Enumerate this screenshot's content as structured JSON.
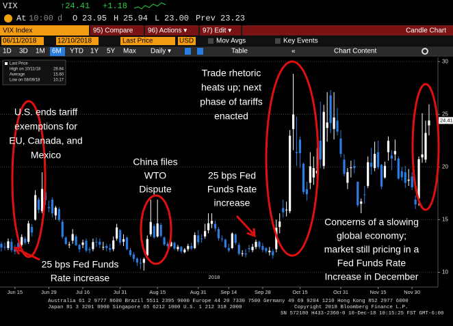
{
  "header": {
    "ticker": "VIX",
    "last": "↑24.41",
    "change": "+1.18",
    "time_label": "At",
    "time": "10:00",
    "time_flag": "d",
    "open_label": "O",
    "open": "23.95",
    "high_label": "H",
    "high": "25.94",
    "low_label": "L",
    "low": "23.00",
    "prev_label": "Prev",
    "prev": "23.23"
  },
  "toolbar": {
    "security": "VIX Index",
    "compare": "95) Compare",
    "actions": "96) Actions ▾",
    "edit": "97) Edit ▾",
    "chart_name": "Candle Chart"
  },
  "date_row": {
    "start": "06/11/2018",
    "end": "12/10/2018",
    "field": "Last Price",
    "currency": "USD",
    "mov_avgs": "Mov Avgs",
    "key_events": "Key Events"
  },
  "ranges": [
    "1D",
    "3D",
    "1M",
    "6M",
    "YTD",
    "1Y",
    "5Y",
    "Max"
  ],
  "period": "Daily ▾",
  "table": "Table",
  "chart_content": "Chart Content",
  "chart_data": {
    "type": "candlestick",
    "up_color": "#ffffff",
    "down_color": "#2a7de1",
    "year_label": "2018",
    "legend": [
      {
        "label": "Last Price"
      },
      {
        "label": "High on 10/11/18",
        "value": "28.84"
      },
      {
        "label": "Average",
        "value": "15.60"
      },
      {
        "label": "Low on 08/09/18",
        "value": "10.17"
      }
    ],
    "categories": [
      null,
      null,
      null,
      null,
      "Jun 15",
      null,
      null,
      null,
      null,
      null,
      null,
      null,
      null,
      null,
      "Jun 29",
      null,
      null,
      null,
      null,
      null,
      null,
      null,
      null,
      null,
      "Jul 16",
      null,
      null,
      null,
      null,
      null,
      null,
      null,
      null,
      null,
      null,
      "Jul 31",
      null,
      null,
      null,
      null,
      null,
      null,
      null,
      null,
      null,
      null,
      "Aug 15",
      null,
      null,
      null,
      null,
      null,
      null,
      null,
      null,
      null,
      null,
      null,
      "Aug 31",
      null,
      null,
      null,
      null,
      null,
      null,
      null,
      null,
      "Sep 14",
      null,
      null,
      null,
      null,
      null,
      null,
      null,
      null,
      null,
      "Sep 28",
      null,
      null,
      null,
      null,
      null,
      null,
      null,
      null,
      null,
      null,
      "Oct 15",
      null,
      null,
      null,
      null,
      null,
      null,
      null,
      null,
      null,
      null,
      null,
      "Oct 31",
      null,
      null,
      null,
      null,
      null,
      null,
      null,
      null,
      null,
      null,
      "Nov 15",
      null,
      null,
      null,
      null,
      null,
      null,
      null,
      null,
      null,
      "Nov 30",
      null,
      null,
      null,
      null,
      null
    ],
    "open": [
      12.7,
      12.4,
      12.3,
      12.9,
      12.2,
      12.8,
      12.6,
      13.2,
      12.9,
      14.3,
      15.0,
      16.9,
      15.8,
      17.6,
      16.2,
      16.9,
      15.4,
      16.0,
      14.8,
      13.3,
      12.6,
      13.0,
      13.4,
      12.6,
      12.6,
      13.0,
      12.2,
      12.2,
      12.9,
      12.9,
      12.4,
      12.5,
      12.3,
      12.2,
      13.2,
      14.0,
      12.9,
      13.3,
      12.1,
      11.7,
      11.3,
      10.9,
      10.9,
      11.6,
      13.6,
      14.4,
      13.4,
      14.5,
      13.3,
      12.7,
      12.5,
      12.8,
      12.2,
      12.4,
      11.9,
      12.2,
      12.5,
      12.3,
      13.5,
      13.2,
      13.4,
      14.0,
      14.6,
      14.6,
      14.1,
      13.2,
      13.1,
      12.3,
      12.3,
      13.6,
      12.6,
      11.8,
      11.8,
      12.3,
      12.1,
      12.4,
      12.9,
      12.5,
      12.3,
      11.9,
      12.0,
      12.2,
      14.3,
      16.1,
      15.9,
      15.8,
      23.6,
      21.4,
      22.6,
      20.3,
      17.9,
      18.5,
      19.0,
      19.4,
      22.5,
      20.1,
      23.7,
      26.8,
      23.6,
      24.4,
      22.7,
      20.7,
      18.5,
      19.9,
      20.1,
      18.6,
      16.5,
      17.4,
      18.2,
      20.4,
      19.9,
      21.4,
      20.2,
      19.0,
      21.4,
      21.1,
      21.2,
      20.8,
      19.6,
      19.5,
      18.7,
      19.1,
      16.9,
      17.0,
      20.9,
      20.7,
      23.95
    ],
    "high": [
      12.9,
      12.8,
      13.2,
      13.2,
      12.6,
      13.2,
      13.6,
      13.4,
      14.9,
      14.6,
      17.8,
      17.1,
      19.5,
      18.7,
      16.8,
      17.1,
      16.3,
      16.2,
      15.0,
      13.4,
      12.9,
      14.1,
      13.6,
      12.7,
      13.1,
      13.2,
      12.4,
      13.2,
      13.3,
      13.2,
      12.9,
      12.7,
      12.7,
      13.4,
      14.6,
      14.1,
      13.6,
      13.4,
      12.3,
      11.9,
      11.4,
      11.3,
      11.4,
      13.5,
      16.9,
      14.6,
      16.9,
      14.7,
      13.4,
      12.9,
      13.1,
      12.9,
      12.6,
      12.5,
      12.3,
      12.7,
      12.8,
      13.8,
      14.0,
      13.6,
      14.6,
      15.6,
      15.6,
      14.9,
      14.3,
      13.5,
      13.2,
      12.7,
      13.8,
      13.7,
      12.8,
      12.1,
      12.2,
      12.6,
      12.7,
      13.1,
      13.0,
      12.8,
      12.4,
      12.4,
      12.2,
      15.0,
      15.6,
      16.9,
      16.7,
      23.5,
      28.84,
      24.8,
      22.9,
      20.4,
      18.6,
      21.4,
      21.0,
      21.8,
      26.2,
      25.9,
      27.1,
      27.3,
      27.1,
      25.6,
      23.5,
      21.2,
      19.9,
      20.6,
      20.7,
      18.6,
      17.0,
      18.2,
      21.0,
      21.8,
      22.4,
      22.5,
      20.3,
      20.5,
      22.9,
      21.6,
      22.6,
      21.0,
      20.0,
      20.1,
      19.8,
      19.5,
      17.3,
      21.0,
      25.1,
      24.4,
      25.94
    ],
    "low": [
      12.0,
      12.1,
      12.1,
      11.9,
      11.7,
      12.1,
      12.4,
      12.6,
      12.7,
      13.4,
      14.9,
      15.6,
      15.6,
      16.4,
      15.7,
      15.2,
      15.0,
      14.8,
      13.2,
      12.6,
      12.3,
      12.7,
      12.5,
      11.9,
      12.3,
      11.9,
      11.8,
      12.0,
      12.4,
      12.3,
      12.1,
      12.0,
      11.9,
      12.0,
      13.0,
      12.6,
      12.5,
      12.1,
      11.5,
      11.0,
      10.6,
      10.3,
      10.17,
      11.5,
      13.4,
      13.2,
      13.3,
      13.3,
      12.5,
      12.3,
      12.4,
      12.1,
      12.0,
      11.8,
      11.8,
      12.0,
      12.1,
      12.2,
      12.6,
      12.8,
      13.2,
      13.7,
      14.2,
      13.9,
      13.0,
      12.9,
      12.3,
      11.9,
      12.2,
      12.6,
      11.6,
      11.5,
      11.4,
      11.9,
      11.9,
      12.2,
      12.2,
      11.9,
      11.8,
      11.6,
      11.3,
      11.9,
      13.7,
      15.2,
      15.3,
      15.6,
      21.6,
      20.1,
      19.9,
      17.4,
      16.8,
      17.9,
      18.3,
      18.9,
      19.9,
      19.8,
      22.4,
      23.2,
      22.6,
      23.0,
      20.9,
      19.1,
      17.9,
      19.0,
      19.4,
      16.2,
      15.6,
      16.5,
      18.0,
      19.3,
      19.6,
      19.8,
      17.9,
      18.9,
      20.6,
      19.7,
      20.6,
      18.8,
      18.7,
      18.0,
      18.2,
      17.8,
      16.0,
      16.3,
      20.4,
      20.4,
      23
    ],
    "close": [
      12.35,
      12.34,
      12.94,
      12.12,
      11.98,
      12.31,
      13.35,
      12.79,
      14.64,
      13.77,
      17.33,
      15.92,
      17.91,
      16.85,
      16.09,
      15.6,
      16.14,
      14.97,
      13.37,
      12.69,
      12.64,
      13.63,
      12.58,
      12.18,
      12.83,
      12.06,
      12.1,
      12.87,
      12.86,
      12.62,
      12.41,
      12.29,
      12.14,
      13.03,
      14.26,
      12.83,
      13.15,
      12.19,
      11.64,
      11.27,
      10.93,
      10.85,
      11.27,
      13.16,
      14.78,
      13.31,
      14.64,
      13.45,
      12.64,
      12.49,
      12.86,
      12.25,
      12.41,
      11.99,
      12.16,
      12.5,
      12.25,
      13.53,
      12.86,
      13.16,
      13.91,
      14.65,
      14.88,
      14.16,
      13.22,
      13.14,
      12.37,
      12.07,
      13.68,
      12.79,
      11.75,
      11.8,
      11.68,
      12.2,
      12.42,
      12.89,
      12.41,
      12.12,
      12,
      12.05,
      11.61,
      14.22,
      14.82,
      15.69,
      15.95,
      22.96,
      24.98,
      21.31,
      21.3,
      17.62,
      17.4,
      20.06,
      19.89,
      19.64,
      20.71,
      25.23,
      24.22,
      24.16,
      24.7,
      23.35,
      21.23,
      19.34,
      19.51,
      19.96,
      19.91,
      16.36,
      16.72,
      17.36,
      20.45,
      20.02,
      21.25,
      19.98,
      18.14,
      20.1,
      22.48,
      20.8,
      21.52,
      18.9,
      19.02,
      18.49,
      18.79,
      18.07,
      16.44,
      20.74,
      21.19,
      23.23,
      24.41
    ],
    "ylim": [
      8.6,
      30.4
    ],
    "yticks": [
      10,
      15,
      20,
      25,
      30
    ],
    "grid": true,
    "annotations": [
      {
        "lines": [
          "U.S. ends tariff",
          "exemptions for",
          "EU, Canada, and",
          "Mexico"
        ]
      },
      {
        "lines": [
          "China files",
          "WTO",
          "Dispute"
        ]
      },
      {
        "lines": [
          "Trade rhetoric",
          "heats up; next",
          "phase of tariffs",
          "enacted"
        ]
      },
      {
        "lines": [
          "25 bps Fed",
          "Funds Rate",
          "increase"
        ]
      },
      {
        "lines": [
          "25 bps Fed Funds",
          "Rate increase"
        ]
      },
      {
        "lines": [
          "Concerns of a slowing",
          "global economy;",
          "market still pricing in a",
          "Fed Funds Rate",
          "Increase in December"
        ]
      }
    ]
  },
  "footer": [
    "Australia 61 2 9777 8600 Brazil 5511 2395 9000 Europe 44 20 7330 7500 Germany 49 69 9204 1210 Hong Kong 852 2977 6000",
    "Japan 81 3 3201 8900         Singapore 65 6212 1000         U.S. 1 212 318 2000",
    "Copyright 2018 Bloomberg Finance L.P.",
    "SN 572180 H433-2360-0 10-Dec-18 10:15:25 FST   GMT-6:00"
  ]
}
